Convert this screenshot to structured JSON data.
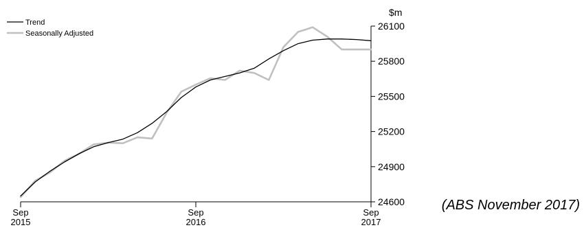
{
  "chart_data": {
    "type": "line",
    "unit_label": "$m",
    "x_ticks": [
      {
        "month": 0,
        "line1": "Sep",
        "line2": "2015"
      },
      {
        "month": 12,
        "line1": "Sep",
        "line2": "2016"
      },
      {
        "month": 24,
        "line1": "Sep",
        "line2": "2017"
      }
    ],
    "x_range": [
      "Sep 2015",
      "Sep 2017"
    ],
    "ylim": [
      24600,
      26100
    ],
    "y_ticks": [
      "26100",
      "25800",
      "25500",
      "25200",
      "24900",
      "24600"
    ],
    "legend_position": "top-left",
    "series": [
      {
        "name": "Trend",
        "color": "#000000",
        "x": [
          "Sep 2015",
          "Oct 2015",
          "Nov 2015",
          "Dec 2015",
          "Jan 2016",
          "Feb 2016",
          "Mar 2016",
          "Apr 2016",
          "May 2016",
          "Jun 2016",
          "Jul 2016",
          "Aug 2016",
          "Sep 2016",
          "Oct 2016",
          "Nov 2016",
          "Dec 2016",
          "Jan 2017",
          "Feb 2017",
          "Mar 2017",
          "Apr 2017",
          "May 2017",
          "Jun 2017",
          "Jul 2017",
          "Aug 2017",
          "Sep 2017"
        ],
        "values": [
          24650,
          24770,
          24860,
          24940,
          25010,
          25070,
          25105,
          25135,
          25190,
          25270,
          25370,
          25490,
          25580,
          25640,
          25670,
          25700,
          25740,
          25820,
          25890,
          25950,
          25980,
          25990,
          25990,
          25985,
          25975
        ]
      },
      {
        "name": "Seasonally Adjusted",
        "color": "#c0c0c0",
        "x": [
          "Sep 2015",
          "Oct 2015",
          "Nov 2015",
          "Dec 2015",
          "Jan 2016",
          "Feb 2016",
          "Mar 2016",
          "Apr 2016",
          "May 2016",
          "Jun 2016",
          "Jul 2016",
          "Aug 2016",
          "Sep 2016",
          "Oct 2016",
          "Nov 2016",
          "Dec 2016",
          "Jan 2017",
          "Feb 2017",
          "Mar 2017",
          "Apr 2017",
          "May 2017",
          "Jun 2017",
          "Jul 2017",
          "Aug 2017",
          "Sep 2017"
        ],
        "values": [
          24640,
          24780,
          24850,
          24950,
          25010,
          25090,
          25105,
          25100,
          25150,
          25140,
          25360,
          25540,
          25600,
          25655,
          25640,
          25720,
          25700,
          25640,
          25920,
          26050,
          26090,
          26010,
          25900,
          25900,
          25900
        ]
      }
    ]
  },
  "source_note": "(ABS November 2017)"
}
